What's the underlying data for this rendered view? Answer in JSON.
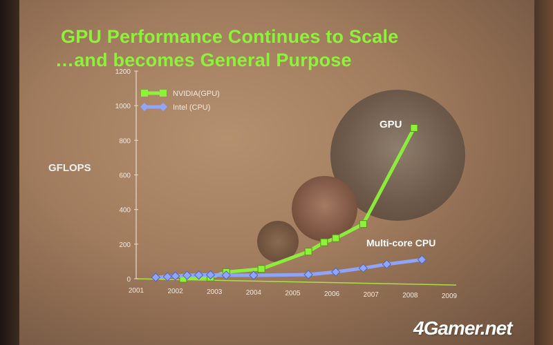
{
  "title_line1": "GPU Performance Continues to Scale",
  "title_line2": "…and becomes General Purpose",
  "watermark": "4Gamer.net",
  "gpu_annotation": "GPU",
  "cpu_annotation": "Multi-core CPU",
  "chart_data": {
    "type": "line",
    "ylabel": "GFLOPS",
    "xlabel": "",
    "ylim": [
      0,
      1200
    ],
    "yticks": [
      0,
      200,
      400,
      600,
      800,
      1000,
      1200
    ],
    "xlim": [
      2001,
      2009
    ],
    "xticks": [
      "2001",
      "2002",
      "2003",
      "2004",
      "2005",
      "2006",
      "2007",
      "2008",
      "2009"
    ],
    "legend_position": "top-left",
    "series": [
      {
        "name": "NVIDIA(GPU)",
        "color": "#8cf23a",
        "points": [
          {
            "x": 2002.2,
            "y": 5
          },
          {
            "x": 2002.9,
            "y": 15
          },
          {
            "x": 2003.3,
            "y": 48
          },
          {
            "x": 2004.2,
            "y": 70
          },
          {
            "x": 2005.4,
            "y": 175
          },
          {
            "x": 2005.8,
            "y": 230
          },
          {
            "x": 2006.1,
            "y": 255
          },
          {
            "x": 2006.8,
            "y": 340
          },
          {
            "x": 2008.1,
            "y": 900
          }
        ]
      },
      {
        "name": "Intel (CPU)",
        "color": "#8ea6ff",
        "points": [
          {
            "x": 2001.5,
            "y": 10
          },
          {
            "x": 2001.8,
            "y": 15
          },
          {
            "x": 2002.0,
            "y": 20
          },
          {
            "x": 2002.3,
            "y": 25
          },
          {
            "x": 2002.6,
            "y": 28
          },
          {
            "x": 2002.9,
            "y": 30
          },
          {
            "x": 2003.3,
            "y": 30
          },
          {
            "x": 2004.0,
            "y": 32
          },
          {
            "x": 2005.4,
            "y": 42
          },
          {
            "x": 2006.1,
            "y": 60
          },
          {
            "x": 2006.8,
            "y": 85
          },
          {
            "x": 2007.4,
            "y": 110
          },
          {
            "x": 2008.3,
            "y": 140
          }
        ]
      }
    ]
  }
}
